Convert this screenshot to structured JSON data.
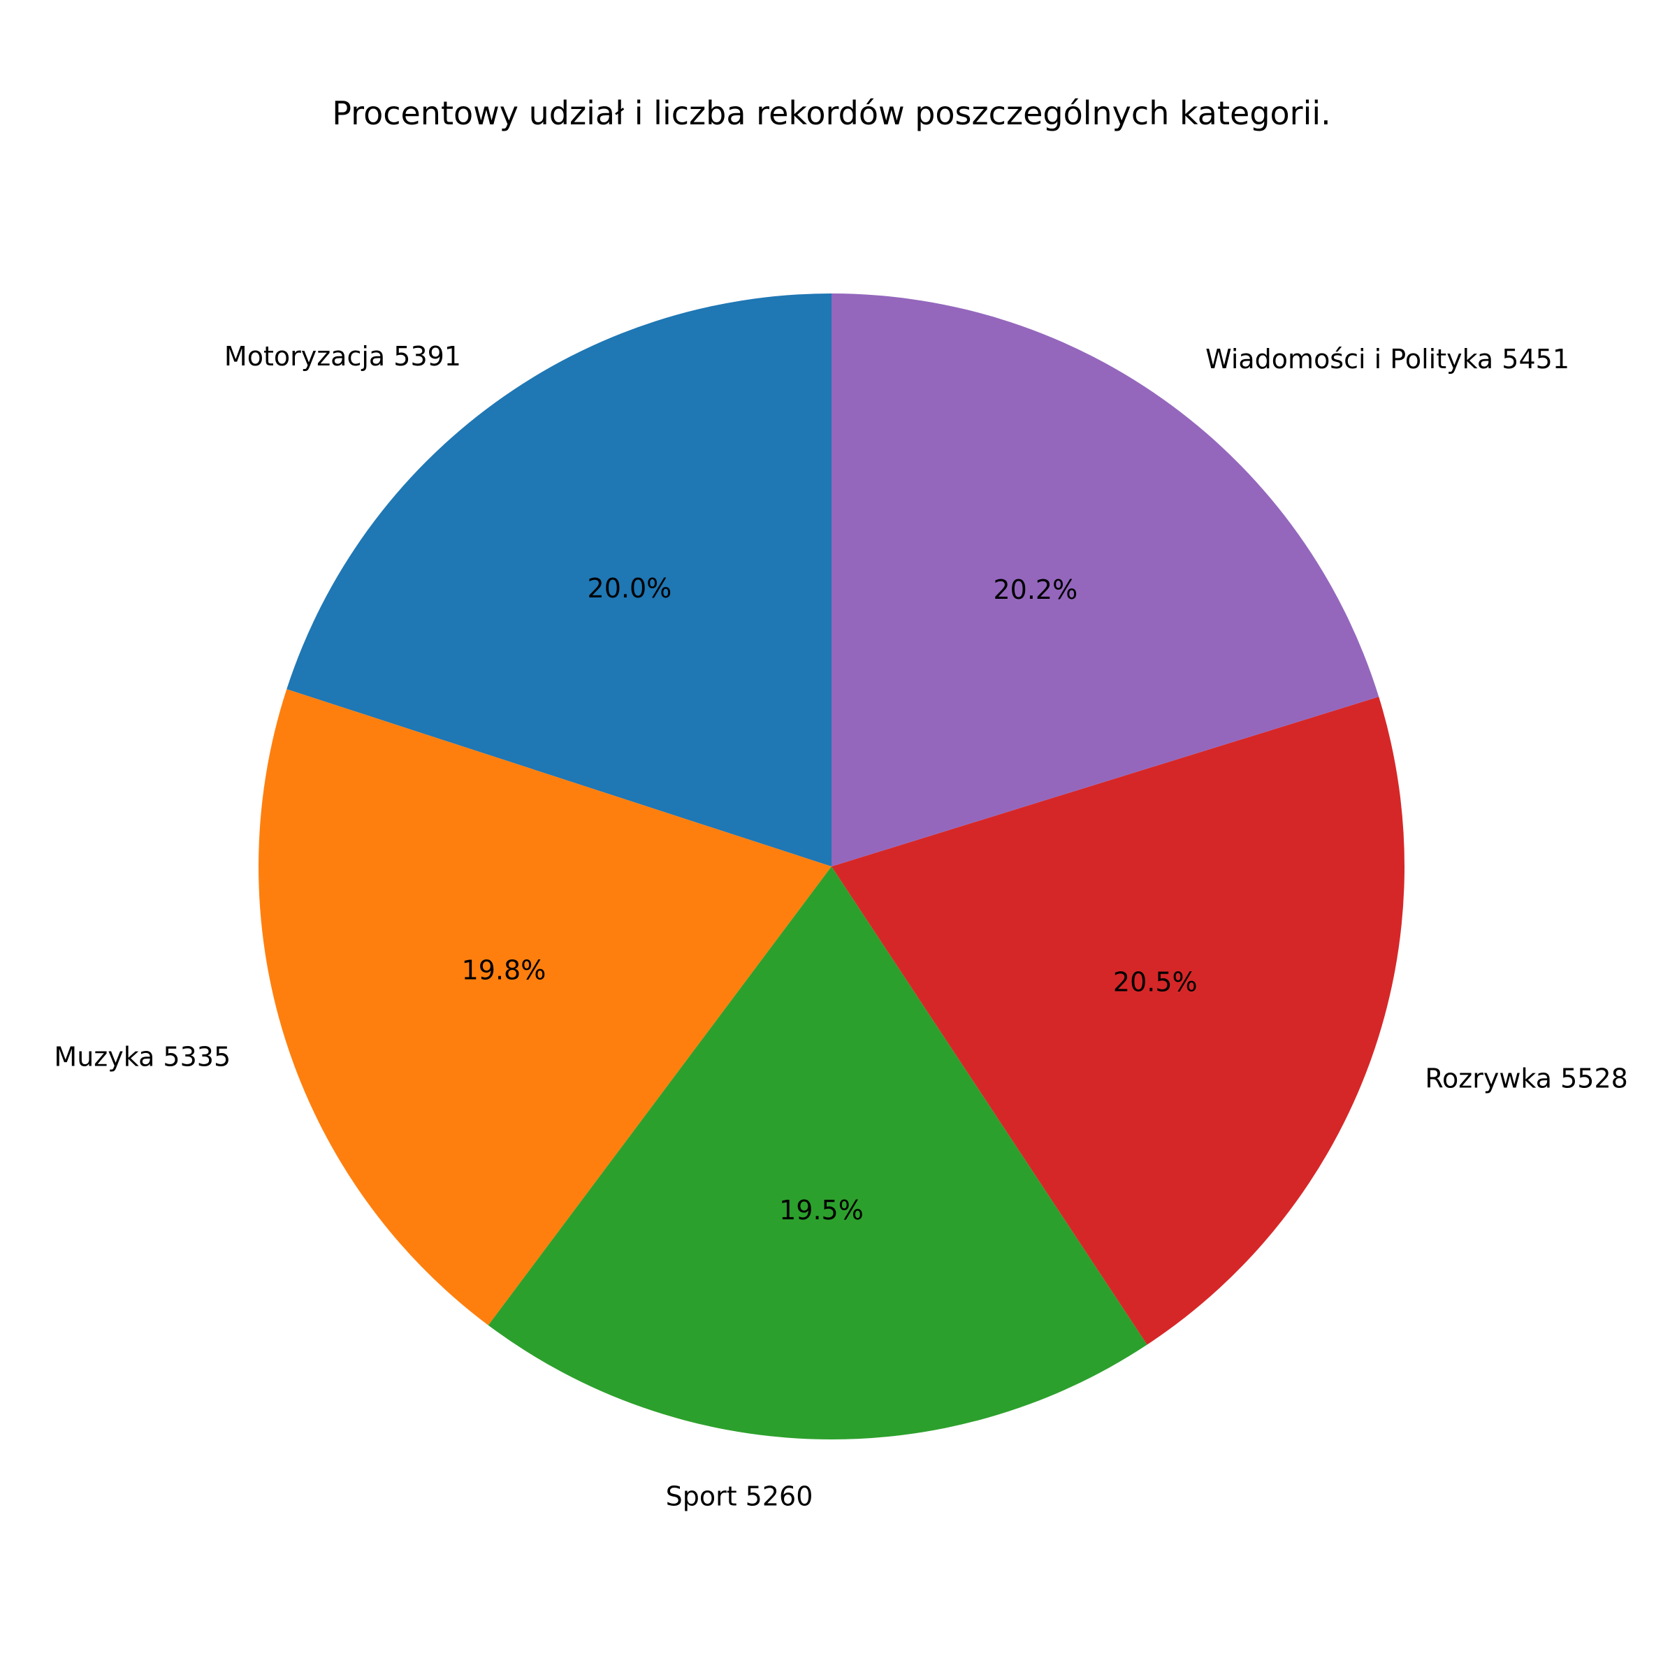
{
  "chart_data": {
    "type": "pie",
    "title": "Procentowy udział i liczba rekordów poszczególnych kategorii.",
    "start_angle_deg": 90,
    "direction": "counterclockwise",
    "slices": [
      {
        "category": "Motoryzacja",
        "value": 5391,
        "label": "Motoryzacja 5391",
        "pct_label": "20.0%",
        "color": "#1f77b4"
      },
      {
        "category": "Muzyka",
        "value": 5335,
        "label": "Muzyka 5335",
        "pct_label": "19.8%",
        "color": "#ff7f0e"
      },
      {
        "category": "Sport",
        "value": 5260,
        "label": "Sport 5260",
        "pct_label": "19.5%",
        "color": "#2ca02c"
      },
      {
        "category": "Rozrywka",
        "value": 5528,
        "label": "Rozrywka 5528",
        "pct_label": "20.5%",
        "color": "#d62728"
      },
      {
        "category": "Wiadomości i Polityka",
        "value": 5451,
        "label": "Wiadomości i Polityka 5451",
        "pct_label": "20.2%",
        "color": "#9467bd"
      }
    ]
  }
}
